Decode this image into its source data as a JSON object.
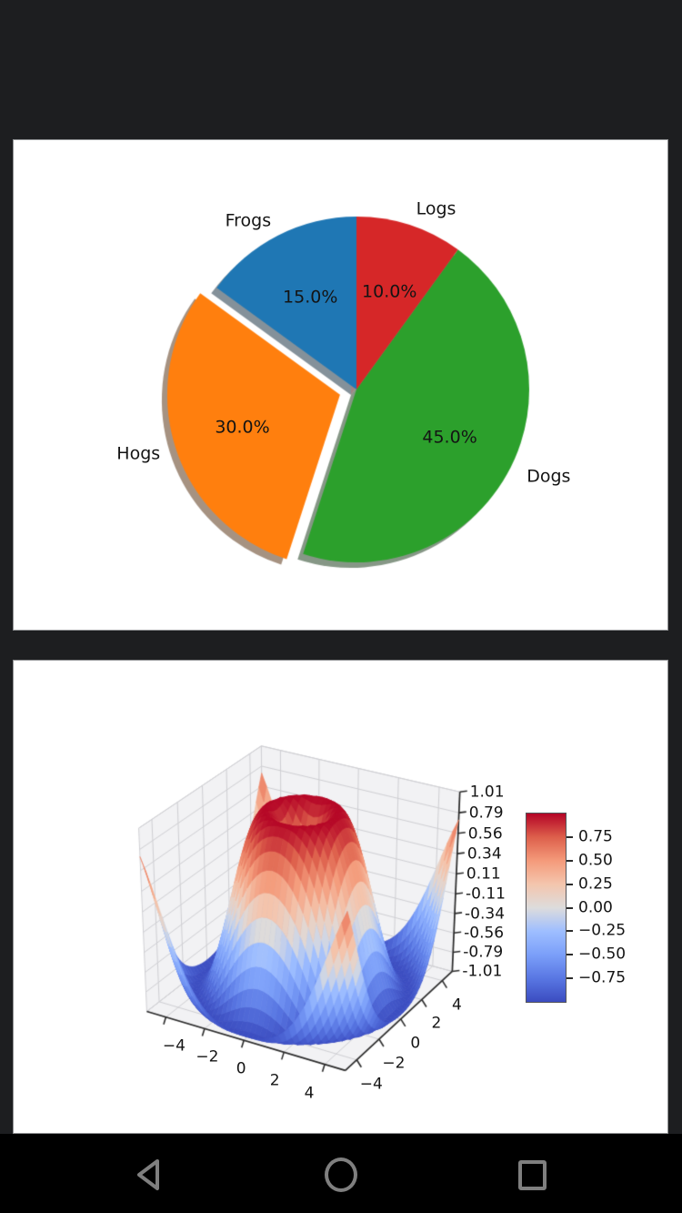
{
  "app": {
    "background_color": "#1d1e20",
    "panel_background": "#ffffff",
    "panel_border_color": "#8f9193",
    "text_color": "#141414"
  },
  "chart_data": [
    {
      "type": "pie",
      "labels": [
        "Frogs",
        "Hogs",
        "Dogs",
        "Logs"
      ],
      "values": [
        15,
        30,
        45,
        10
      ],
      "pct_labels": [
        "15.0%",
        "30.0%",
        "45.0%",
        "10.0%"
      ],
      "colors": [
        "#1f77b4",
        "#ff7f0e",
        "#2ca02c",
        "#d62728"
      ],
      "explode": [
        0,
        0.1,
        0,
        0
      ],
      "startangle": 90,
      "counterclock": true,
      "shadow": true,
      "labeldistance": 1.1,
      "pctdistance": 0.6
    },
    {
      "type": "surface",
      "title": "",
      "function": "z = sin(sqrt(x^2 + y^2))",
      "x_range": [
        -5,
        5
      ],
      "y_range": [
        -5,
        5
      ],
      "grid_step": 0.25,
      "zlim": [
        -1.01,
        1.01
      ],
      "x_tick_values": [
        -4,
        -2,
        0,
        2,
        4
      ],
      "y_tick_values": [
        -4,
        -2,
        0,
        2,
        4
      ],
      "x_tick_labels": [
        "−4",
        "−2",
        "0",
        "2",
        "4"
      ],
      "y_tick_labels": [
        "−4",
        "−2",
        "0",
        "2",
        "4"
      ],
      "z_tick_values": [
        1.01,
        0.7856,
        0.5611,
        0.3367,
        0.1122,
        -0.1122,
        -0.3367,
        -0.5611,
        -0.7856,
        -1.01
      ],
      "z_tick_labels": [
        "1.01",
        "0.79",
        "0.56",
        "0.34",
        "0.11",
        "-0.11",
        "-0.34",
        "-0.56",
        "-0.79",
        "-1.01"
      ],
      "view": {
        "elev": 30,
        "azim": -60,
        "dist": 10
      },
      "colormap": "coolwarm",
      "colormap_stops": [
        [
          0.0,
          "#3b4cc0"
        ],
        [
          0.125,
          "#5977e3"
        ],
        [
          0.25,
          "#7b9ff9"
        ],
        [
          0.375,
          "#9ebeff"
        ],
        [
          0.5,
          "#dddcdc"
        ],
        [
          0.625,
          "#f4c5ad"
        ],
        [
          0.75,
          "#f49a7a"
        ],
        [
          0.875,
          "#dd5f4b"
        ],
        [
          1.0,
          "#b40426"
        ]
      ],
      "color_norm_range": [
        -1,
        1
      ],
      "pane_color": "#f2f2f4",
      "grid_color": "#cfcfd3",
      "axis_color": "#2b2b2b",
      "colorbar": {
        "range": [
          -1,
          1
        ],
        "tick_values": [
          0.75,
          0.5,
          0.25,
          0,
          -0.25,
          -0.5,
          -0.75
        ],
        "tick_labels": [
          "0.75",
          "0.50",
          "0.25",
          "0.00",
          "−0.25",
          "−0.50",
          "−0.75"
        ]
      }
    }
  ],
  "navbar": {
    "background_color": "#000000",
    "icon_color": "#7f7f7f",
    "buttons": [
      "back",
      "home",
      "recents"
    ]
  }
}
